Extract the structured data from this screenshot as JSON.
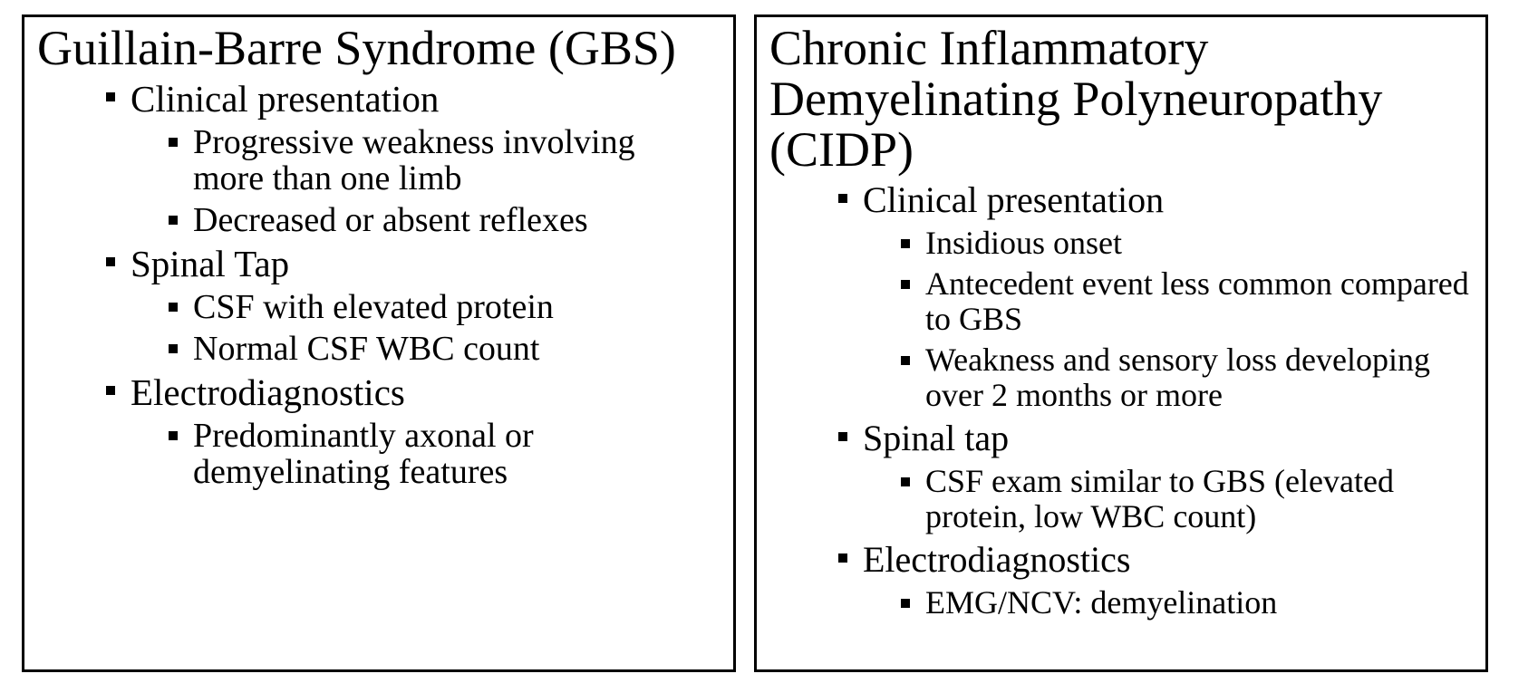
{
  "panels": [
    {
      "title": "Guillain-Barre Syndrome (GBS)",
      "items": [
        {
          "text": "Clinical presentation",
          "subitems": [
            "Progressive weakness involving more than one limb",
            "Decreased or absent reflexes"
          ]
        },
        {
          "text": "Spinal Tap",
          "subitems": [
            "CSF with elevated protein",
            "Normal CSF WBC count"
          ]
        },
        {
          "text": "Electrodiagnostics",
          "subitems": [
            "Predominantly axonal or demyelinating features"
          ]
        }
      ]
    },
    {
      "title": "Chronic Inflammatory Demyelinating Polyneuropathy (CIDP)",
      "items": [
        {
          "text": "Clinical presentation",
          "subitems": [
            "Insidious onset",
            "Antecedent event less common compared to GBS",
            "Weakness and sensory loss developing over 2 months or more"
          ]
        },
        {
          "text": "Spinal tap",
          "subitems": [
            "CSF exam similar to GBS (elevated protein, low WBC count)"
          ]
        },
        {
          "text": "Electrodiagnostics",
          "subitems": [
            "EMG/NCV: demyelination"
          ]
        }
      ]
    }
  ]
}
